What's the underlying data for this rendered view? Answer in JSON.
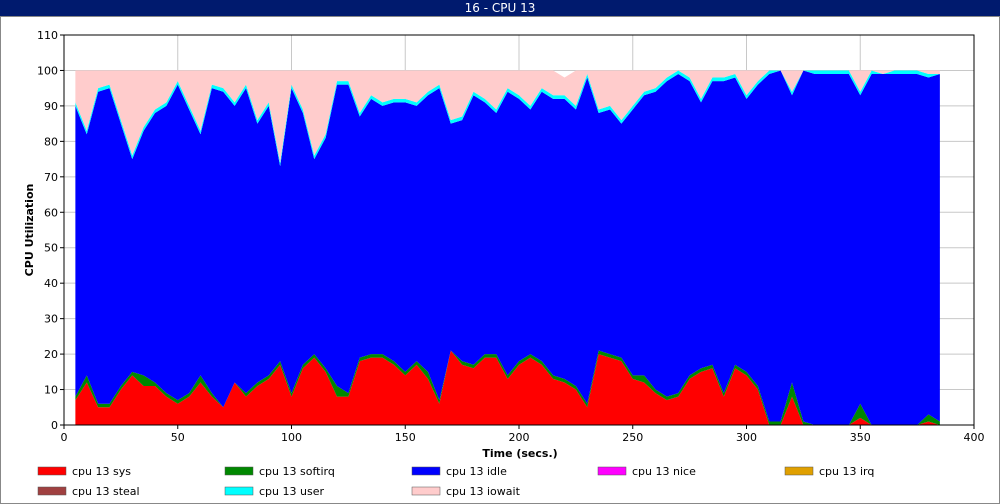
{
  "title": "16 - CPU 13",
  "colors": {
    "title_bar": "#001a6e",
    "plot_bg": "#ffffff",
    "grid": "#c8c8c8"
  },
  "chart_data": {
    "type": "area",
    "stacked": true,
    "xlabel": "Time (secs.)",
    "ylabel": "CPU Utilization",
    "xlim": [
      0,
      400
    ],
    "ylim": [
      0,
      110
    ],
    "x_ticks": [
      0,
      50,
      100,
      150,
      200,
      250,
      300,
      350,
      400
    ],
    "y_ticks": [
      0,
      10,
      20,
      30,
      40,
      50,
      60,
      70,
      80,
      90,
      100,
      110
    ],
    "grid": true,
    "legend_position": "bottom",
    "x": [
      5,
      10,
      15,
      20,
      25,
      30,
      35,
      40,
      45,
      50,
      55,
      60,
      65,
      70,
      75,
      80,
      85,
      90,
      95,
      100,
      105,
      110,
      115,
      120,
      125,
      130,
      135,
      140,
      145,
      150,
      155,
      160,
      165,
      170,
      175,
      180,
      185,
      190,
      195,
      200,
      205,
      210,
      215,
      220,
      225,
      230,
      235,
      240,
      245,
      250,
      255,
      260,
      265,
      270,
      275,
      280,
      285,
      290,
      295,
      300,
      305,
      310,
      315,
      320,
      325,
      330,
      335,
      340,
      345,
      350,
      355,
      360,
      365,
      370,
      375,
      380,
      385
    ],
    "series": [
      {
        "name": "cpu 13 sys",
        "color": "#ff0000",
        "values": [
          7,
          12,
          5,
          5,
          10,
          14,
          11,
          11,
          8,
          6,
          8,
          12,
          8,
          5,
          12,
          8,
          11,
          13,
          17,
          8,
          16,
          19,
          15,
          8,
          8,
          18,
          19,
          19,
          17,
          14,
          17,
          13,
          6,
          21,
          17,
          16,
          19,
          19,
          13,
          17,
          19,
          17,
          13,
          12,
          10,
          5,
          20,
          19,
          18,
          13,
          12,
          9,
          7,
          8,
          13,
          15,
          16,
          8,
          16,
          14,
          10,
          0,
          0,
          8,
          0,
          0,
          0,
          0,
          0,
          2,
          0,
          0,
          0,
          0,
          0,
          1,
          0
        ]
      },
      {
        "name": "cpu 13 softirq",
        "color": "#008800",
        "values": [
          1,
          2,
          1,
          1,
          1,
          1,
          3,
          1,
          1,
          1,
          1,
          2,
          1,
          0,
          0,
          1,
          1,
          1,
          1,
          1,
          1,
          1,
          1,
          3,
          1,
          1,
          1,
          1,
          1,
          1,
          1,
          2,
          1,
          0,
          1,
          1,
          1,
          1,
          1,
          1,
          1,
          1,
          1,
          1,
          1,
          1,
          1,
          1,
          1,
          1,
          2,
          1,
          1,
          1,
          1,
          1,
          1,
          1,
          1,
          1,
          1,
          1,
          1,
          4,
          1,
          0,
          0,
          0,
          0,
          4,
          0,
          0,
          0,
          0,
          0,
          2,
          1
        ]
      },
      {
        "name": "cpu 13 idle",
        "color": "#0000ff",
        "values": [
          82,
          68,
          88,
          89,
          74,
          60,
          69,
          76,
          81,
          89,
          80,
          68,
          86,
          89,
          78,
          86,
          73,
          76,
          55,
          86,
          71,
          55,
          65,
          85,
          87,
          68,
          72,
          70,
          73,
          76,
          72,
          78,
          88,
          64,
          68,
          76,
          71,
          68,
          80,
          74,
          69,
          76,
          78,
          79,
          78,
          92,
          67,
          69,
          66,
          75,
          79,
          84,
          89,
          90,
          83,
          75,
          80,
          88,
          81,
          77,
          85,
          98,
          99,
          81,
          99,
          99,
          99,
          99,
          99,
          87,
          99,
          99,
          99,
          99,
          99,
          95,
          98
        ]
      },
      {
        "name": "cpu 13 nice",
        "color": "#ff00ff",
        "values": [
          0,
          0,
          0,
          0,
          0,
          0,
          0,
          0,
          0,
          0,
          0,
          0,
          0,
          0,
          0,
          0,
          0,
          0,
          0,
          0,
          0,
          0,
          0,
          0,
          0,
          0,
          0,
          0,
          0,
          0,
          0,
          0,
          0,
          0,
          0,
          0,
          0,
          0,
          0,
          0,
          0,
          0,
          0,
          0,
          0,
          0,
          0,
          0,
          0,
          0,
          0,
          0,
          0,
          0,
          0,
          0,
          0,
          0,
          0,
          0,
          0,
          0,
          0,
          0,
          0,
          0,
          0,
          0,
          0,
          0,
          0,
          0,
          0,
          0,
          0,
          0,
          0
        ]
      },
      {
        "name": "cpu 13 irq",
        "color": "#e0a000",
        "values": [
          0,
          0,
          0,
          0,
          0,
          0,
          0,
          0,
          0,
          0,
          0,
          0,
          0,
          0,
          0,
          0,
          0,
          0,
          0,
          0,
          0,
          0,
          0,
          0,
          0,
          0,
          0,
          0,
          0,
          0,
          0,
          0,
          0,
          0,
          0,
          0,
          0,
          0,
          0,
          0,
          0,
          0,
          0,
          0,
          0,
          0,
          0,
          0,
          0,
          0,
          0,
          0,
          0,
          0,
          0,
          0,
          0,
          0,
          0,
          0,
          0,
          0,
          0,
          0,
          0,
          0,
          0,
          0,
          0,
          0,
          0,
          0,
          0,
          0,
          0,
          0,
          0
        ]
      },
      {
        "name": "cpu 13 steal",
        "color": "#a04040",
        "values": [
          0,
          0,
          0,
          0,
          0,
          0,
          0,
          0,
          0,
          0,
          0,
          0,
          0,
          0,
          0,
          0,
          0,
          0,
          0,
          0,
          0,
          0,
          0,
          0,
          0,
          0,
          0,
          0,
          0,
          0,
          0,
          0,
          0,
          0,
          0,
          0,
          0,
          0,
          0,
          0,
          0,
          0,
          0,
          0,
          0,
          0,
          0,
          0,
          0,
          0,
          0,
          0,
          0,
          0,
          0,
          0,
          0,
          0,
          0,
          0,
          0,
          0,
          0,
          0,
          0,
          0,
          0,
          0,
          0,
          0,
          0,
          0,
          0,
          0,
          0,
          0,
          0
        ]
      },
      {
        "name": "cpu 13 user",
        "color": "#00ffff",
        "values": [
          1,
          1,
          1,
          1,
          1,
          1,
          1,
          1,
          1,
          1,
          1,
          1,
          1,
          1,
          1,
          1,
          1,
          1,
          1,
          1,
          1,
          1,
          1,
          1,
          1,
          1,
          1,
          1,
          1,
          1,
          1,
          1,
          1,
          1,
          1,
          1,
          1,
          1,
          1,
          1,
          1,
          1,
          1,
          1,
          1,
          1,
          1,
          1,
          1,
          1,
          1,
          1,
          1,
          1,
          1,
          1,
          1,
          1,
          1,
          1,
          1,
          1,
          0,
          1,
          0,
          1,
          1,
          1,
          1,
          1,
          1,
          0,
          1,
          1,
          1,
          1,
          0
        ]
      },
      {
        "name": "cpu 13 iowait",
        "color": "#ffcccc",
        "values": [
          9,
          17,
          5,
          4,
          14,
          24,
          16,
          11,
          9,
          3,
          10,
          17,
          4,
          5,
          9,
          4,
          14,
          9,
          26,
          4,
          11,
          24,
          18,
          3,
          3,
          12,
          7,
          9,
          8,
          8,
          9,
          6,
          4,
          14,
          13,
          6,
          8,
          11,
          5,
          7,
          10,
          5,
          7,
          5,
          10,
          1,
          11,
          10,
          14,
          10,
          6,
          5,
          2,
          0,
          2,
          8,
          2,
          2,
          1,
          7,
          3,
          0,
          0,
          6,
          0,
          0,
          0,
          0,
          0,
          6,
          0,
          1,
          0,
          0,
          0,
          1,
          1
        ]
      }
    ]
  }
}
